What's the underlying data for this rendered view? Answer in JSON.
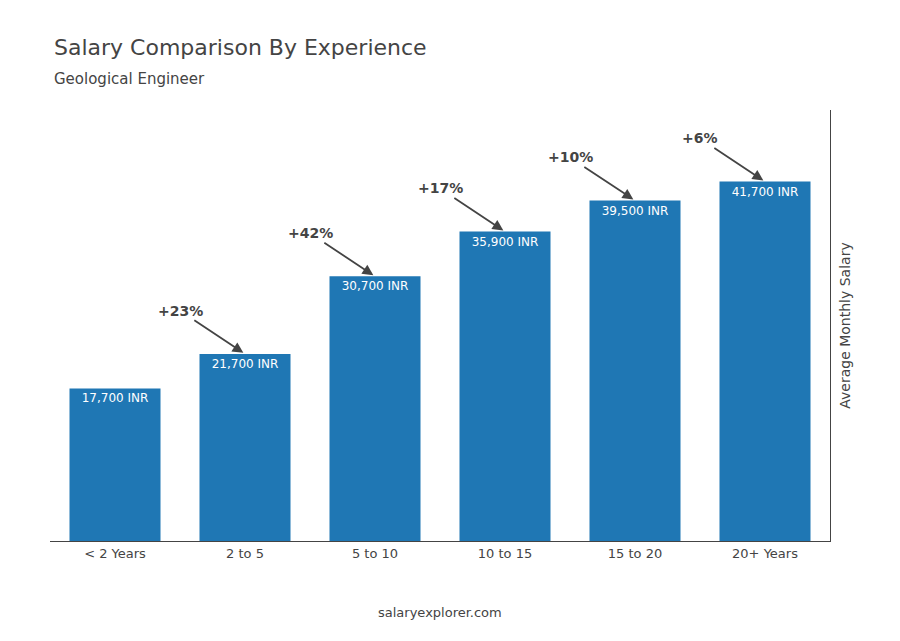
{
  "chart_data": {
    "type": "bar",
    "title": "Salary Comparison By Experience",
    "subtitle": "Geological Engineer",
    "ylabel": "Average Monthly Salary",
    "categories": [
      "< 2 Years",
      "2 to 5",
      "5 to 10",
      "10 to 15",
      "15 to 20",
      "20+ Years"
    ],
    "values": [
      17700,
      21700,
      30700,
      35900,
      39500,
      41700
    ],
    "value_labels": [
      "17,700 INR",
      "21,700 INR",
      "30,700 INR",
      "35,900 INR",
      "39,500 INR",
      "41,700 INR"
    ],
    "data_labels": true,
    "annotations": [
      {
        "text": "+23%",
        "from": "< 2 Years",
        "to": "2 to 5"
      },
      {
        "text": "+42%",
        "from": "2 to 5",
        "to": "5 to 10"
      },
      {
        "text": "+17%",
        "from": "5 to 10",
        "to": "10 to 15"
      },
      {
        "text": "+10%",
        "from": "10 to 15",
        "to": "15 to 20"
      },
      {
        "text": "+6%",
        "from": "15 to 20",
        "to": "20+ Years"
      },
      {
        "text": "salaryexplorer.com"
      }
    ],
    "ylim": [
      0,
      50000
    ],
    "tick_labels": "x",
    "grid": false
  }
}
